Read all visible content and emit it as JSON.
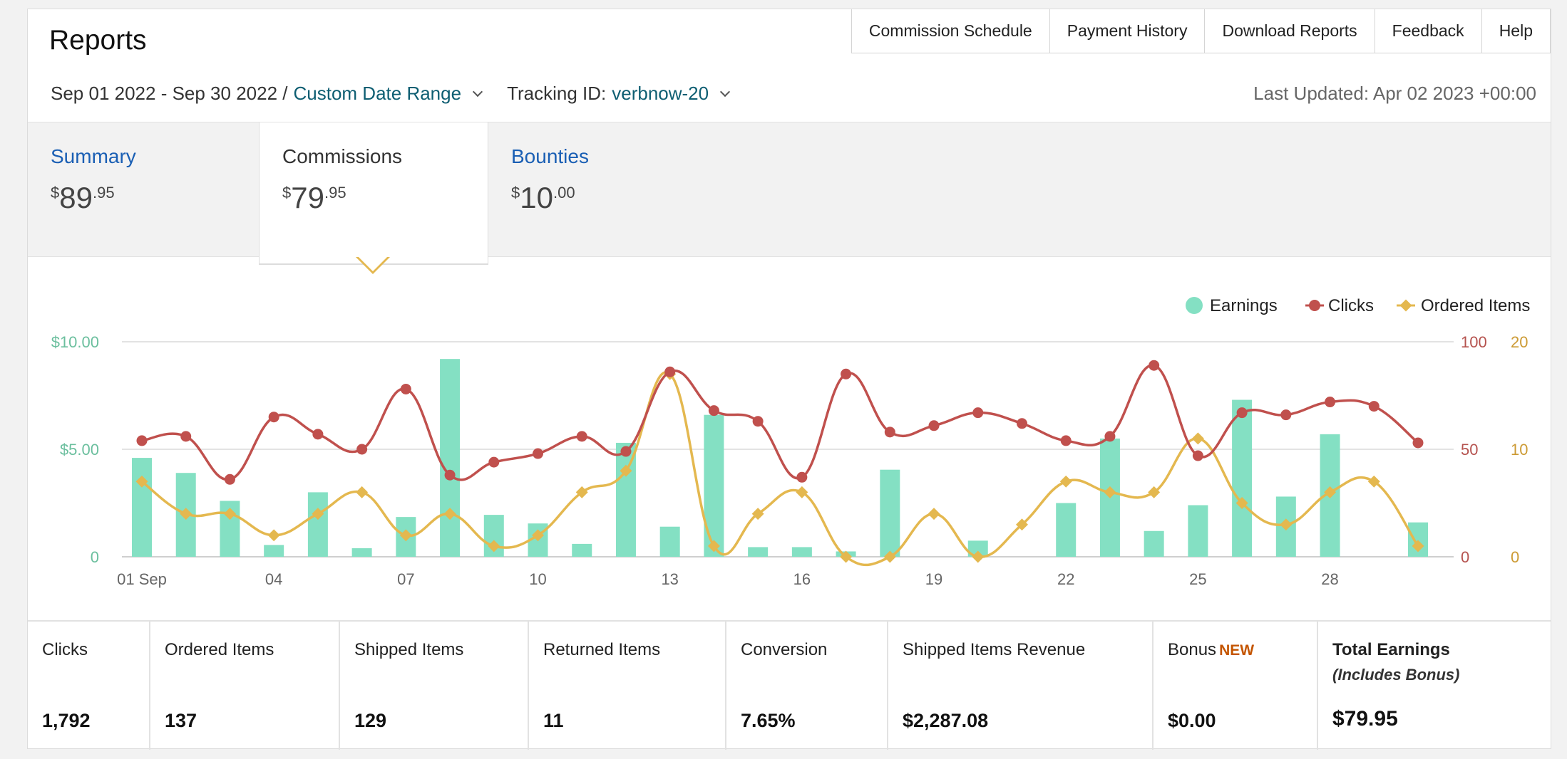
{
  "header": {
    "title": "Reports",
    "nav": [
      "Commission Schedule",
      "Payment History",
      "Download Reports",
      "Feedback",
      "Help"
    ]
  },
  "filters": {
    "date_range": "Sep 01 2022 - Sep 30 2022 /",
    "range_type": "Custom Date Range",
    "tracking_label": "Tracking ID:",
    "tracking_id": "verbnow-20",
    "last_updated": "Last Updated: Apr 02 2023 +00:00"
  },
  "tabs": [
    {
      "label": "Summary",
      "currency": "$",
      "whole": "89",
      "cents": ".95",
      "active": false
    },
    {
      "label": "Commissions",
      "currency": "$",
      "whole": "79",
      "cents": ".95",
      "active": true
    },
    {
      "label": "Bounties",
      "currency": "$",
      "whole": "10",
      "cents": ".00",
      "active": false
    }
  ],
  "stats": [
    {
      "label": "Clicks",
      "value": "1,792"
    },
    {
      "label": "Ordered Items",
      "value": "137"
    },
    {
      "label": "Shipped Items",
      "value": "129"
    },
    {
      "label": "Returned Items",
      "value": "11"
    },
    {
      "label": "Conversion",
      "value": "7.65%"
    },
    {
      "label": "Shipped Items Revenue",
      "value": "$2,287.08"
    },
    {
      "label": "Bonus",
      "badge": "NEW",
      "value": "$0.00"
    },
    {
      "label": "Total Earnings",
      "sub": "(Includes Bonus)",
      "value": "$79.95"
    }
  ],
  "colors": {
    "earnings": "#84e0c3",
    "clicks": "#c0504d",
    "ordered": "#e4b84f",
    "left_axis": "#6bbf9e",
    "right_axis_clicks": "#b5524e",
    "right_axis_items": "#cc9a33"
  },
  "chart_data": {
    "type": "bar+line",
    "legend": [
      "Earnings",
      "Clicks",
      "Ordered Items"
    ],
    "legend_position": "top-right",
    "x_tick_labels": [
      "01 Sep",
      "04",
      "07",
      "10",
      "13",
      "16",
      "19",
      "22",
      "25",
      "28"
    ],
    "x_tick_days": [
      1,
      4,
      7,
      10,
      13,
      16,
      19,
      22,
      25,
      28
    ],
    "left_axis": {
      "ticks": [
        "$10.00",
        "$5.00",
        "0"
      ],
      "range": [
        0,
        10
      ]
    },
    "right_axis_clicks": {
      "ticks": [
        "100",
        "50",
        "0"
      ],
      "range": [
        0,
        100
      ]
    },
    "right_axis_items": {
      "ticks": [
        "20",
        "10",
        "0"
      ],
      "range": [
        0,
        20
      ]
    },
    "days": [
      1,
      2,
      3,
      4,
      5,
      6,
      7,
      8,
      9,
      10,
      11,
      12,
      13,
      14,
      15,
      16,
      17,
      18,
      19,
      20,
      21,
      22,
      23,
      24,
      25,
      26,
      27,
      28,
      29,
      30
    ],
    "series": [
      {
        "name": "Earnings",
        "axis": "left",
        "kind": "bar",
        "values": [
          4.6,
          3.9,
          2.6,
          0.55,
          3.0,
          0.4,
          1.85,
          9.2,
          1.95,
          1.55,
          0.6,
          5.3,
          1.4,
          6.6,
          0.45,
          0.45,
          0.25,
          4.05,
          0,
          0.75,
          0,
          2.5,
          5.5,
          1.2,
          2.4,
          7.3,
          2.8,
          5.7,
          0,
          1.6
        ]
      },
      {
        "name": "Clicks",
        "axis": "right_clicks",
        "kind": "line",
        "values": [
          54,
          56,
          36,
          65,
          57,
          50,
          78,
          38,
          44,
          48,
          56,
          49,
          86,
          68,
          63,
          37,
          85,
          58,
          61,
          67,
          62,
          54,
          56,
          89,
          47,
          67,
          66,
          72,
          70,
          53
        ]
      },
      {
        "name": "Ordered Items",
        "axis": "right_items",
        "kind": "line",
        "values": [
          7,
          4,
          4,
          2,
          4,
          6,
          2,
          4,
          1,
          2,
          6,
          8,
          17,
          1,
          4,
          6,
          0,
          0,
          4,
          0,
          3,
          7,
          6,
          6,
          11,
          5,
          3,
          6,
          7,
          1
        ]
      }
    ]
  }
}
